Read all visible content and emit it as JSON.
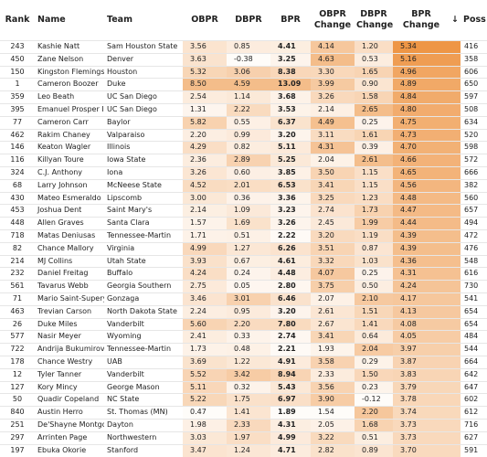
{
  "table": {
    "columns": [
      "Rank",
      "Name",
      "Team",
      "OBPR",
      "DBPR",
      "BPR",
      "OBPR Change",
      "DBPR Change",
      "BPR Change",
      "↓",
      "Poss"
    ],
    "rows": [
      [
        "243",
        "Kashie Natt",
        "Sam Houston State",
        "3.56",
        "0.85",
        "4.41",
        "4.14",
        "1.20",
        "5.34",
        "",
        "416"
      ],
      [
        "450",
        "Zane Nelson",
        "Denver",
        "3.63",
        "-0.38",
        "3.25",
        "4.63",
        "0.53",
        "5.16",
        "",
        "358"
      ],
      [
        "150",
        "Kingston Flemings",
        "Houston",
        "5.32",
        "3.06",
        "8.38",
        "3.30",
        "1.65",
        "4.96",
        "",
        "606"
      ],
      [
        "1",
        "Cameron Boozer",
        "Duke",
        "8.50",
        "4.59",
        "13.09",
        "3.99",
        "0.90",
        "4.89",
        "",
        "650"
      ],
      [
        "359",
        "Leo Beath",
        "UC San Diego",
        "2.54",
        "1.14",
        "3.68",
        "3.26",
        "1.58",
        "4.84",
        "",
        "597"
      ],
      [
        "395",
        "Emanuel Prosper II",
        "UC San Diego",
        "1.31",
        "2.22",
        "3.53",
        "2.14",
        "2.65",
        "4.80",
        "",
        "508"
      ],
      [
        "77",
        "Cameron Carr",
        "Baylor",
        "5.82",
        "0.55",
        "6.37",
        "4.49",
        "0.25",
        "4.75",
        "",
        "634"
      ],
      [
        "462",
        "Rakim Chaney",
        "Valparaiso",
        "2.20",
        "0.99",
        "3.20",
        "3.11",
        "1.61",
        "4.73",
        "",
        "520"
      ],
      [
        "146",
        "Keaton Wagler",
        "Illinois",
        "4.29",
        "0.82",
        "5.11",
        "4.31",
        "0.39",
        "4.70",
        "",
        "598"
      ],
      [
        "116",
        "Killyan Toure",
        "Iowa State",
        "2.36",
        "2.89",
        "5.25",
        "2.04",
        "2.61",
        "4.66",
        "",
        "572"
      ],
      [
        "324",
        "C.J. Anthony",
        "Iona",
        "3.26",
        "0.60",
        "3.85",
        "3.50",
        "1.15",
        "4.65",
        "",
        "666"
      ],
      [
        "68",
        "Larry Johnson",
        "McNeese State",
        "4.52",
        "2.01",
        "6.53",
        "3.41",
        "1.15",
        "4.56",
        "",
        "382"
      ],
      [
        "430",
        "Mateo Esmeraldo",
        "Lipscomb",
        "3.00",
        "0.36",
        "3.36",
        "3.25",
        "1.23",
        "4.48",
        "",
        "560"
      ],
      [
        "453",
        "Joshua Dent",
        "Saint Mary's",
        "2.14",
        "1.09",
        "3.23",
        "2.74",
        "1.73",
        "4.47",
        "",
        "657"
      ],
      [
        "448",
        "Allen Graves",
        "Santa Clara",
        "1.57",
        "1.69",
        "3.26",
        "2.45",
        "1.99",
        "4.44",
        "",
        "494"
      ],
      [
        "718",
        "Matas Deniusas",
        "Tennessee-Martin",
        "1.71",
        "0.51",
        "2.22",
        "3.20",
        "1.19",
        "4.39",
        "",
        "472"
      ],
      [
        "82",
        "Chance Mallory",
        "Virginia",
        "4.99",
        "1.27",
        "6.26",
        "3.51",
        "0.87",
        "4.39",
        "",
        "476"
      ],
      [
        "214",
        "MJ Collins",
        "Utah State",
        "3.93",
        "0.67",
        "4.61",
        "3.32",
        "1.03",
        "4.36",
        "",
        "548"
      ],
      [
        "232",
        "Daniel Freitag",
        "Buffalo",
        "4.24",
        "0.24",
        "4.48",
        "4.07",
        "0.25",
        "4.31",
        "",
        "616"
      ],
      [
        "561",
        "Tavarus Webb",
        "Georgia Southern",
        "2.75",
        "0.05",
        "2.80",
        "3.75",
        "0.50",
        "4.24",
        "",
        "730"
      ],
      [
        "71",
        "Mario Saint-Supery",
        "Gonzaga",
        "3.46",
        "3.01",
        "6.46",
        "2.07",
        "2.10",
        "4.17",
        "",
        "541"
      ],
      [
        "463",
        "Trevian Carson",
        "North Dakota State",
        "2.24",
        "0.95",
        "3.20",
        "2.61",
        "1.51",
        "4.13",
        "",
        "654"
      ],
      [
        "26",
        "Duke Miles",
        "Vanderbilt",
        "5.60",
        "2.20",
        "7.80",
        "2.67",
        "1.41",
        "4.08",
        "",
        "654"
      ],
      [
        "577",
        "Nasir Meyer",
        "Wyoming",
        "2.41",
        "0.33",
        "2.74",
        "3.41",
        "0.64",
        "4.05",
        "",
        "484"
      ],
      [
        "722",
        "Andrija Bukumirović",
        "Tennessee-Martin",
        "1.73",
        "0.48",
        "2.21",
        "1.93",
        "2.04",
        "3.97",
        "",
        "544"
      ],
      [
        "178",
        "Chance Westry",
        "UAB",
        "3.69",
        "1.22",
        "4.91",
        "3.58",
        "0.29",
        "3.87",
        "",
        "664"
      ],
      [
        "12",
        "Tyler Tanner",
        "Vanderbilt",
        "5.52",
        "3.42",
        "8.94",
        "2.33",
        "1.50",
        "3.83",
        "",
        "642"
      ],
      [
        "127",
        "Kory Mincy",
        "George Mason",
        "5.11",
        "0.32",
        "5.43",
        "3.56",
        "0.23",
        "3.79",
        "",
        "647"
      ],
      [
        "50",
        "Quadir Copeland",
        "NC State",
        "5.22",
        "1.75",
        "6.97",
        "3.90",
        "-0.12",
        "3.78",
        "",
        "602"
      ],
      [
        "840",
        "Austin Herro",
        "St. Thomas (MN)",
        "0.47",
        "1.41",
        "1.89",
        "1.54",
        "2.20",
        "3.74",
        "",
        "612"
      ],
      [
        "251",
        "De'Shayne Montgon",
        "Dayton",
        "1.98",
        "2.33",
        "4.31",
        "2.05",
        "1.68",
        "3.73",
        "",
        "716"
      ],
      [
        "297",
        "Arrinten Page",
        "Northwestern",
        "3.03",
        "1.97",
        "4.99",
        "3.22",
        "0.51",
        "3.73",
        "",
        "627"
      ],
      [
        "197",
        "Ebuka Okorie",
        "Stanford",
        "3.47",
        "1.24",
        "4.71",
        "2.82",
        "0.89",
        "3.70",
        "",
        "591"
      ]
    ]
  }
}
